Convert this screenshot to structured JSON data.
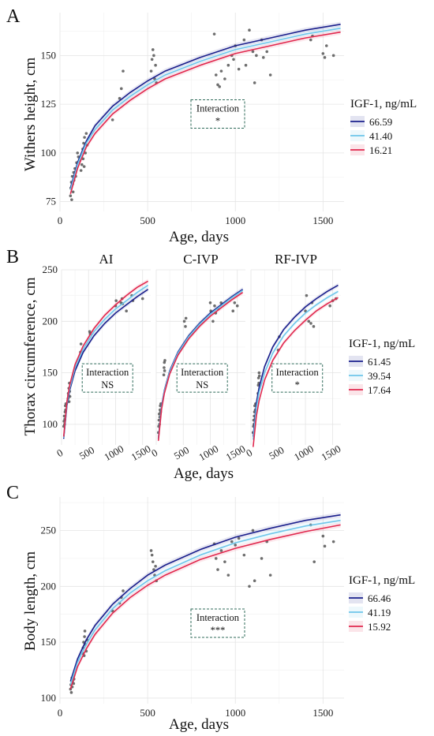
{
  "chart_data": [
    {
      "panel": "A",
      "type": "line",
      "xlabel": "Age, days",
      "ylabel": "Withers height, cm",
      "xlim": [
        0,
        1620
      ],
      "ylim": [
        70,
        172
      ],
      "xticks": [
        0,
        500,
        1000,
        1500
      ],
      "yticks": [
        75,
        100,
        125,
        150
      ],
      "grid": true,
      "legend": {
        "title": "IGF-1, ng/mL",
        "placement": "right",
        "entries": [
          {
            "label": "66.59",
            "color": "#1a1f8c"
          },
          {
            "label": "41.40",
            "color": "#6ec6ea"
          },
          {
            "label": "16.21",
            "color": "#e0284e"
          }
        ]
      },
      "annotation": {
        "line1": "Interaction",
        "line2": "*",
        "x": 900,
        "y": 120
      },
      "series": [
        {
          "name": "66.59",
          "color": "#1a1f8c",
          "x": [
            60,
            100,
            150,
            200,
            300,
            400,
            500,
            600,
            800,
            1000,
            1200,
            1400,
            1600
          ],
          "y": [
            82,
            95,
            106,
            114,
            124,
            131,
            137,
            142,
            149,
            155,
            159,
            163,
            166
          ]
        },
        {
          "name": "41.40",
          "color": "#6ec6ea",
          "x": [
            60,
            100,
            150,
            200,
            300,
            400,
            500,
            600,
            800,
            1000,
            1200,
            1400,
            1600
          ],
          "y": [
            81,
            94,
            105,
            112,
            122,
            129,
            135,
            140,
            147,
            153,
            157,
            161,
            164
          ]
        },
        {
          "name": "16.21",
          "color": "#e0284e",
          "x": [
            60,
            100,
            150,
            200,
            300,
            400,
            500,
            600,
            800,
            1000,
            1200,
            1400,
            1600
          ],
          "y": [
            79,
            92,
            103,
            110,
            120,
            127,
            133,
            138,
            145,
            151,
            155,
            159,
            162
          ]
        }
      ],
      "points": {
        "x": [
          60,
          62,
          65,
          67,
          70,
          72,
          75,
          78,
          80,
          85,
          90,
          95,
          100,
          105,
          110,
          120,
          125,
          130,
          132,
          135,
          138,
          140,
          145,
          150,
          155,
          300,
          340,
          350,
          360,
          520,
          525,
          530,
          535,
          540,
          545,
          550,
          880,
          890,
          900,
          910,
          920,
          940,
          960,
          980,
          990,
          1000,
          1020,
          1050,
          1060,
          1080,
          1100,
          1110,
          1120,
          1150,
          1160,
          1180,
          1200,
          1430,
          1440,
          1500,
          1510,
          1520,
          1560
        ],
        "y": [
          78,
          82,
          85,
          76,
          88,
          84,
          80,
          90,
          86,
          92,
          88,
          95,
          100,
          98,
          96,
          91,
          94,
          102,
          97,
          105,
          93,
          108,
          100,
          110,
          104,
          117,
          128,
          133,
          142,
          142,
          148,
          153,
          150,
          138,
          145,
          136,
          161,
          140,
          135,
          134,
          142,
          138,
          145,
          150,
          148,
          155,
          143,
          158,
          145,
          163,
          152,
          136,
          150,
          158,
          149,
          152,
          140,
          158,
          160,
          151,
          149,
          155,
          150
        ]
      }
    },
    {
      "panel": "B",
      "type": "line",
      "xlabel": "Age, days",
      "ylabel": "Thorax circumference, cm",
      "xlim": [
        0,
        1650
      ],
      "ylim": [
        80,
        250
      ],
      "xticks": [
        0,
        500,
        1000,
        1500
      ],
      "yticks": [
        100,
        150,
        200,
        250
      ],
      "grid": true,
      "legend": {
        "title": "IGF-1, ng/mL",
        "placement": "right",
        "entries": [
          {
            "label": "61.45",
            "color": "#1a1f8c"
          },
          {
            "label": "39.54",
            "color": "#6ec6ea"
          },
          {
            "label": "17.64",
            "color": "#e0284e"
          }
        ]
      },
      "facets": [
        {
          "title": "AI",
          "annotation": {
            "line1": "Interaction",
            "line2": "NS",
            "x": 850,
            "y": 145
          },
          "series": [
            {
              "name": "61.45",
              "color": "#1a1f8c",
              "x": [
                40,
                100,
                150,
                250,
                400,
                600,
                800,
                1000,
                1200,
                1400,
                1600
              ],
              "y": [
                86,
                118,
                133,
                152,
                170,
                186,
                198,
                208,
                216,
                224,
                231
              ]
            },
            {
              "name": "39.54",
              "color": "#6ec6ea",
              "x": [
                40,
                100,
                150,
                250,
                400,
                600,
                800,
                1000,
                1200,
                1400,
                1600
              ],
              "y": [
                87,
                120,
                135,
                155,
                173,
                190,
                202,
                212,
                220,
                228,
                235
              ]
            },
            {
              "name": "17.64",
              "color": "#e0284e",
              "x": [
                40,
                100,
                150,
                250,
                400,
                600,
                800,
                1000,
                1200,
                1400,
                1600
              ],
              "y": [
                88,
                122,
                138,
                158,
                176,
                193,
                206,
                216,
                225,
                233,
                239
              ]
            }
          ],
          "points": {
            "x": [
              40,
              45,
              50,
              55,
              60,
              65,
              70,
              75,
              80,
              120,
              125,
              130,
              135,
              140,
              145,
              150,
              155,
              350,
              360,
              520,
              530,
              1000,
              1010,
              1100,
              1120,
              1130,
              1200,
              1300,
              1320,
              1500
            ],
            "y": [
              98,
              103,
              108,
              100,
              105,
              112,
              118,
              114,
              120,
              125,
              130,
              128,
              135,
              122,
              140,
              132,
              127,
              170,
              178,
              190,
              188,
              215,
              220,
              218,
              222,
              217,
              210,
              225,
              220,
              222
            ]
          }
        },
        {
          "title": "C-IVP",
          "annotation": {
            "line1": "Interaction",
            "line2": "NS",
            "x": 850,
            "y": 145
          },
          "series": [
            {
              "name": "61.45",
              "color": "#1a1f8c",
              "x": [
                40,
                100,
                150,
                250,
                400,
                600,
                800,
                1000,
                1200,
                1400,
                1600
              ],
              "y": [
                86,
                118,
                133,
                152,
                170,
                186,
                198,
                208,
                216,
                224,
                231
              ]
            },
            {
              "name": "39.54",
              "color": "#6ec6ea",
              "x": [
                40,
                100,
                150,
                250,
                400,
                600,
                800,
                1000,
                1200,
                1400,
                1600
              ],
              "y": [
                86,
                117,
                132,
                151,
                169,
                185,
                197,
                207,
                215,
                223,
                230
              ]
            },
            {
              "name": "17.64",
              "color": "#e0284e",
              "x": [
                40,
                100,
                150,
                250,
                400,
                600,
                800,
                1000,
                1200,
                1400,
                1600
              ],
              "y": [
                84,
                115,
                130,
                149,
                167,
                183,
                195,
                205,
                213,
                221,
                228
              ]
            }
          ],
          "points": {
            "x": [
              40,
              45,
              50,
              55,
              60,
              65,
              70,
              75,
              80,
              85,
              140,
              145,
              150,
              155,
              160,
              520,
              540,
              550,
              1000,
              1010,
              1050,
              1080,
              1100,
              1150,
              1200,
              1420,
              1450,
              1500
            ],
            "y": [
              92,
              98,
              104,
              110,
              100,
              107,
              114,
              118,
              112,
              120,
              148,
              155,
              160,
              152,
              162,
              200,
              195,
              203,
              218,
              210,
              200,
              215,
              208,
              212,
              218,
              210,
              218,
              215
            ]
          }
        },
        {
          "title": "RF-IVP",
          "annotation": {
            "line1": "Interaction",
            "line2": "*",
            "x": 850,
            "y": 145
          },
          "series": [
            {
              "name": "61.45",
              "color": "#1a1f8c",
              "x": [
                40,
                100,
                150,
                250,
                400,
                600,
                800,
                1000,
                1200,
                1400,
                1600
              ],
              "y": [
                88,
                121,
                136,
                156,
                175,
                192,
                204,
                214,
                222,
                229,
                235
              ]
            },
            {
              "name": "39.54",
              "color": "#6ec6ea",
              "x": [
                40,
                100,
                150,
                250,
                400,
                600,
                800,
                1000,
                1200,
                1400,
                1600
              ],
              "y": [
                85,
                116,
                131,
                150,
                169,
                186,
                198,
                208,
                216,
                223,
                229
              ]
            },
            {
              "name": "17.64",
              "color": "#e0284e",
              "x": [
                40,
                100,
                150,
                250,
                400,
                600,
                800,
                1000,
                1200,
                1400,
                1600
              ],
              "y": [
                78,
                108,
                123,
                143,
                162,
                179,
                191,
                201,
                210,
                217,
                223
              ]
            }
          ],
          "points": {
            "x": [
              40,
              45,
              50,
              55,
              60,
              65,
              70,
              75,
              80,
              85,
              130,
              135,
              140,
              145,
              150,
              155,
              500,
              520,
              1000,
              1020,
              1060,
              1100,
              1120,
              1150,
              1450,
              1500,
              1560
            ],
            "y": [
              92,
              98,
              104,
              100,
              108,
              112,
              118,
              105,
              114,
              120,
              130,
              138,
              145,
              140,
              150,
              147,
              172,
              185,
              210,
              225,
              200,
              198,
              218,
              195,
              215,
              220,
              222
            ]
          }
        }
      ]
    },
    {
      "panel": "C",
      "type": "line",
      "xlabel": "Age, days",
      "ylabel": "Body length, cm",
      "xlim": [
        0,
        1620
      ],
      "ylim": [
        95,
        280
      ],
      "xticks": [
        0,
        500,
        1000,
        1500
      ],
      "yticks": [
        100,
        150,
        200,
        250
      ],
      "grid": true,
      "legend": {
        "title": "IGF-1, ng/mL",
        "placement": "right",
        "entries": [
          {
            "label": "66.46",
            "color": "#1a1f8c"
          },
          {
            "label": "41.19",
            "color": "#6ec6ea"
          },
          {
            "label": "15.92",
            "color": "#e0284e"
          }
        ]
      },
      "annotation": {
        "line1": "Interaction",
        "line2": "***",
        "x": 900,
        "y": 167
      },
      "series": [
        {
          "name": "66.46",
          "color": "#1a1f8c",
          "x": [
            60,
            100,
            150,
            200,
            300,
            400,
            500,
            600,
            800,
            1000,
            1200,
            1400,
            1600
          ],
          "y": [
            115,
            135,
            152,
            165,
            184,
            198,
            210,
            219,
            233,
            244,
            252,
            259,
            264
          ]
        },
        {
          "name": "41.19",
          "color": "#6ec6ea",
          "x": [
            60,
            100,
            150,
            200,
            300,
            400,
            500,
            600,
            800,
            1000,
            1200,
            1400,
            1600
          ],
          "y": [
            112,
            132,
            148,
            161,
            180,
            194,
            205,
            214,
            228,
            239,
            247,
            254,
            259
          ]
        },
        {
          "name": "15.92",
          "color": "#e0284e",
          "x": [
            60,
            100,
            150,
            200,
            300,
            400,
            500,
            600,
            800,
            1000,
            1200,
            1400,
            1600
          ],
          "y": [
            108,
            128,
            144,
            157,
            176,
            190,
            201,
            210,
            224,
            234,
            242,
            249,
            255
          ]
        }
      ],
      "points": {
        "x": [
          60,
          62,
          65,
          68,
          70,
          72,
          75,
          78,
          80,
          130,
          132,
          135,
          138,
          140,
          142,
          145,
          150,
          155,
          300,
          340,
          350,
          360,
          520,
          525,
          530,
          535,
          540,
          545,
          550,
          880,
          890,
          900,
          920,
          940,
          960,
          980,
          1000,
          1020,
          1050,
          1080,
          1100,
          1110,
          1150,
          1180,
          1200,
          1430,
          1450,
          1500,
          1510,
          1560
        ],
        "y": [
          108,
          112,
          105,
          118,
          110,
          115,
          120,
          113,
          117,
          140,
          145,
          150,
          138,
          155,
          160,
          148,
          142,
          152,
          178,
          185,
          190,
          196,
          232,
          228,
          222,
          215,
          210,
          218,
          205,
          238,
          225,
          215,
          232,
          222,
          210,
          240,
          237,
          243,
          228,
          200,
          250,
          205,
          225,
          240,
          210,
          255,
          222,
          245,
          236,
          240
        ]
      }
    }
  ]
}
